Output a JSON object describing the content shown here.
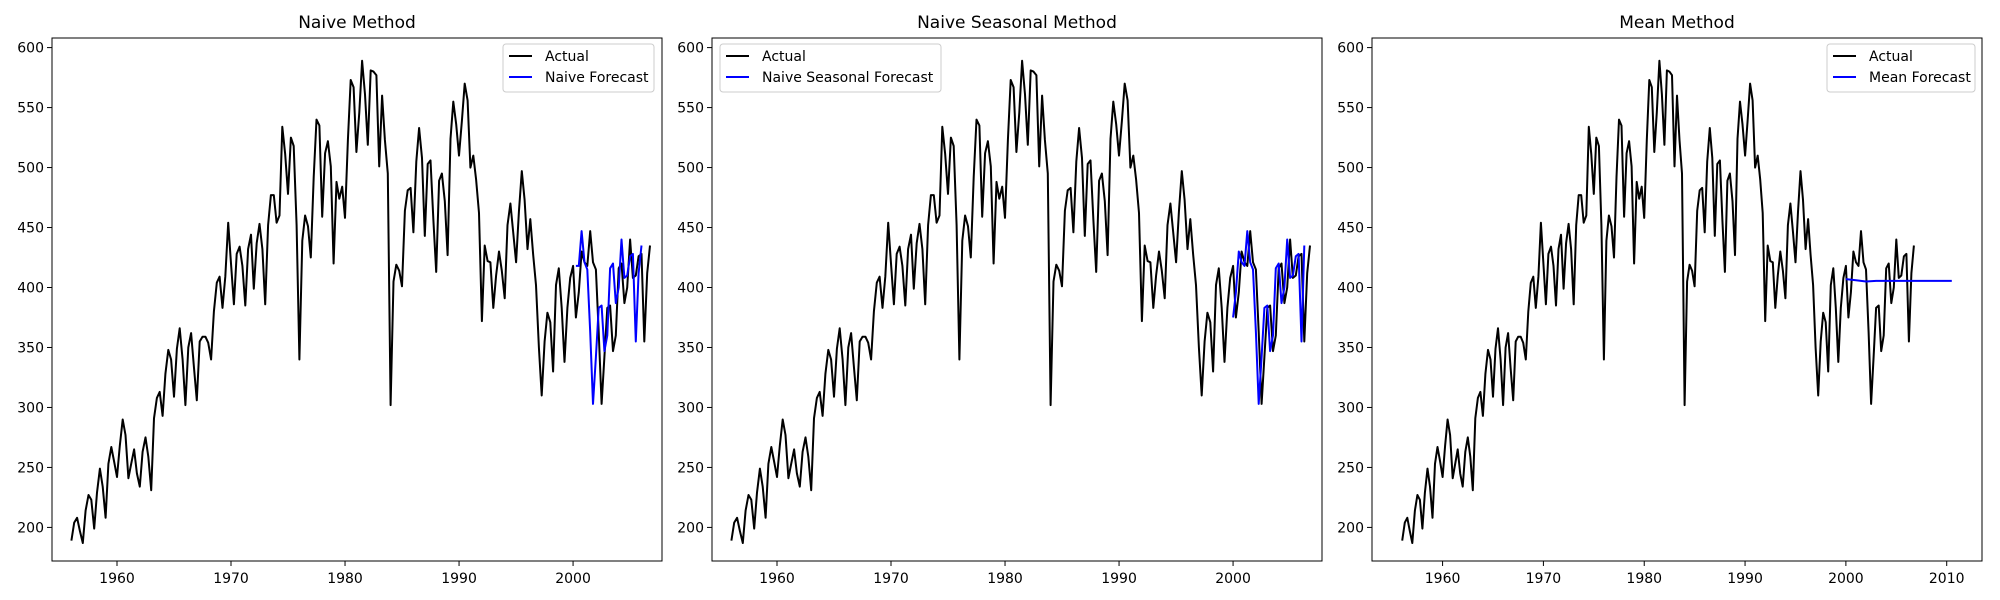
{
  "chart_data": [
    {
      "type": "line",
      "title": "Naive Method",
      "xlabel": "",
      "ylabel": "",
      "xlim": [
        1954.3,
        2007.8
      ],
      "ylim": [
        172,
        608
      ],
      "xticks": [
        1960,
        1970,
        1980,
        1990,
        2000
      ],
      "yticks": [
        200,
        250,
        300,
        350,
        400,
        450,
        500,
        550,
        600
      ],
      "grid": false,
      "legend_position": "top-right",
      "series": [
        {
          "name": "Actual",
          "color": "#000000",
          "source": "actual"
        },
        {
          "name": "Naive Forecast",
          "color": "#0000ff",
          "source": "naive"
        }
      ]
    },
    {
      "type": "line",
      "title": "Naive Seasonal Method",
      "xlabel": "",
      "ylabel": "",
      "xlim": [
        1954.3,
        2007.8
      ],
      "ylim": [
        172,
        608
      ],
      "xticks": [
        1960,
        1970,
        1980,
        1990,
        2000
      ],
      "yticks": [
        200,
        250,
        300,
        350,
        400,
        450,
        500,
        550,
        600
      ],
      "grid": false,
      "legend_position": "top-left",
      "series": [
        {
          "name": "Actual",
          "color": "#000000",
          "source": "actual"
        },
        {
          "name": "Naive Seasonal Forecast",
          "color": "#0000ff",
          "source": "seasonal"
        }
      ]
    },
    {
      "type": "line",
      "title": "Mean Method",
      "xlabel": "",
      "ylabel": "",
      "xlim": [
        1953.0,
        2013.5
      ],
      "ylim": [
        172,
        608
      ],
      "xticks": [
        1960,
        1970,
        1980,
        1990,
        2000,
        2010
      ],
      "yticks": [
        200,
        250,
        300,
        350,
        400,
        450,
        500,
        550,
        600
      ],
      "grid": false,
      "legend_position": "top-right",
      "series": [
        {
          "name": "Actual",
          "color": "#000000",
          "source": "actual"
        },
        {
          "name": "Mean Forecast",
          "color": "#0000ff",
          "source": "mean"
        }
      ]
    }
  ],
  "actual": {
    "start_year": 1956,
    "frequency": "quarterly",
    "values": [
      189,
      204,
      208,
      197,
      187,
      214,
      227,
      223,
      199,
      229,
      249,
      234,
      208,
      253,
      267,
      255,
      242,
      268,
      290,
      277,
      241,
      253,
      265,
      245,
      234,
      263,
      275,
      259,
      231,
      291,
      308,
      313,
      293,
      328,
      348,
      340,
      309,
      349,
      366,
      340,
      302,
      350,
      362,
      333,
      306,
      355,
      359,
      359,
      354,
      340,
      380,
      404,
      409,
      383,
      409,
      454,
      420,
      386,
      428,
      434,
      418,
      385,
      432,
      444,
      399,
      437,
      453,
      432,
      386,
      452,
      477,
      477,
      454,
      460,
      534,
      511,
      478,
      525,
      518,
      452,
      340,
      439,
      460,
      451,
      425,
      492,
      540,
      535,
      459,
      512,
      522,
      501,
      420,
      488,
      474,
      484,
      458,
      523,
      573,
      567,
      513,
      546,
      589,
      561,
      519,
      581,
      580,
      577,
      501,
      560,
      523,
      495,
      302,
      405,
      419,
      414,
      401,
      464,
      481,
      483,
      446,
      505,
      533,
      508,
      443,
      503,
      506,
      456,
      413,
      489,
      495,
      472,
      427,
      524,
      555,
      536,
      510,
      539,
      570,
      556,
      500,
      510,
      490,
      462,
      372,
      435,
      422,
      421,
      383,
      410,
      430,
      414,
      391,
      452,
      470,
      446,
      421,
      463,
      497,
      473,
      432,
      457,
      427,
      402,
      350,
      310,
      355,
      379,
      371,
      330,
      402,
      416,
      383,
      338,
      383,
      408,
      418,
      375,
      396,
      430,
      421,
      418,
      447,
      421,
      415,
      363,
      303,
      342,
      383,
      385,
      347,
      360,
      416,
      420,
      387,
      400,
      440,
      408,
      410,
      426,
      428,
      355,
      412,
      435
    ]
  },
  "naive": {
    "start_year": 2000.25,
    "frequency": "quarterly",
    "values": [
      418,
      418,
      447,
      421,
      415,
      363,
      303,
      342,
      383,
      385,
      347,
      360,
      416,
      420,
      387,
      400,
      440,
      408,
      410,
      426,
      428,
      355,
      412,
      435
    ]
  },
  "seasonal": {
    "start_year": 2000.0,
    "frequency": "quarterly",
    "values": [
      375,
      396,
      430,
      421,
      418,
      447,
      421,
      415,
      363,
      303,
      342,
      383,
      385,
      347,
      360,
      416,
      420,
      387,
      400,
      440,
      408,
      410,
      426,
      428,
      355,
      435
    ]
  },
  "mean": {
    "x": [
      2000.0,
      2001.0,
      2002.0,
      2003.0,
      2004.0,
      2005.0,
      2006.0,
      2008.0,
      2010.5
    ],
    "y": [
      407.0,
      406.0,
      405.0,
      405.5,
      405.5,
      405.5,
      405.5,
      405.5,
      405.5
    ]
  }
}
